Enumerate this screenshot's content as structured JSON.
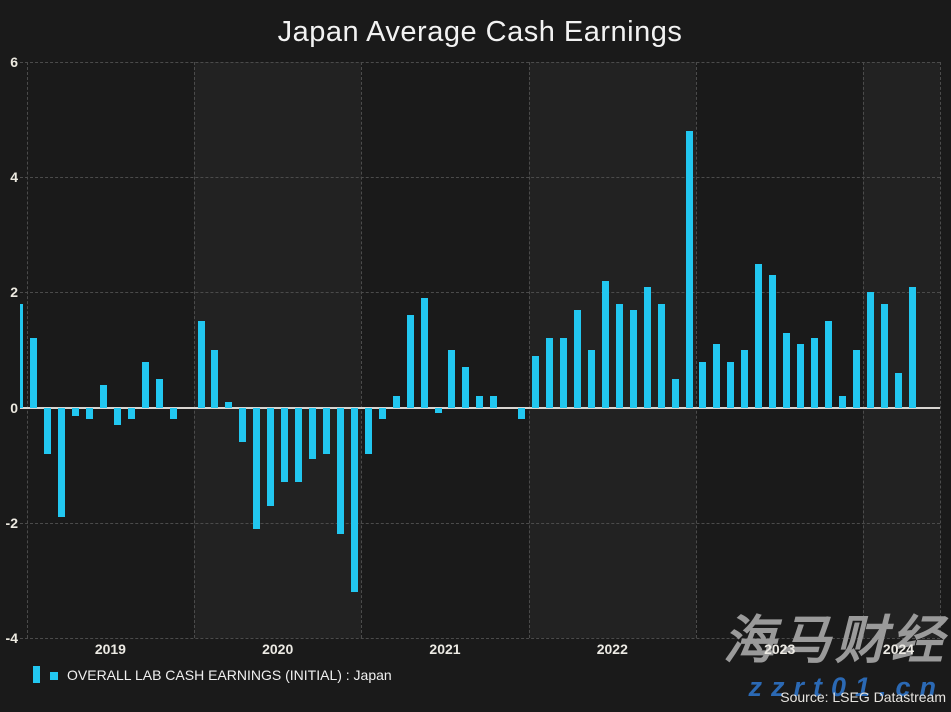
{
  "title": "Japan Average Cash Earnings",
  "legend": {
    "label": "OVERALL LAB CASH EARNINGS (INITIAL) : Japan"
  },
  "source": "Source: LSEG Datastream",
  "watermark": {
    "line1": "海马财经",
    "line2": "zzrt01.cn"
  },
  "colors": {
    "bar": "#22c7f0",
    "background": "#1a1a1a",
    "band_alt": "#222222",
    "grid": "#4b4b4b",
    "zero_line": "#d8d6d2",
    "text": "#f0f0f0",
    "watermark_gray": "#9a9a9a",
    "watermark_blue": "#2b69b4"
  },
  "chart_data": {
    "type": "bar",
    "title": "Japan Average Cash Earnings",
    "series_name": "OVERALL LAB CASH EARNINGS (INITIAL) : Japan",
    "frequency": "monthly",
    "start_month": "2018-12",
    "end_month": "2024-04",
    "ylim": [
      -4,
      6
    ],
    "grid": "dashed",
    "legend_position": "bottom-left",
    "y_ticks": [
      "6",
      "4",
      "2",
      "0",
      "-2",
      "-4"
    ],
    "y_tick_values": [
      6,
      4,
      2,
      0,
      -2,
      -4
    ],
    "x_tick_labels": [
      "2019",
      "2020",
      "2021",
      "2022",
      "2023",
      "2024"
    ],
    "values": [
      1.8,
      1.2,
      -0.8,
      -1.9,
      -0.15,
      -0.2,
      0.4,
      -0.3,
      -0.2,
      0.8,
      0.5,
      -0.2,
      0.0,
      1.5,
      1.0,
      0.1,
      -0.6,
      -2.1,
      -1.7,
      -1.3,
      -1.3,
      -0.9,
      -0.8,
      -2.2,
      -3.2,
      -0.8,
      -0.2,
      0.2,
      1.6,
      1.9,
      -0.1,
      1.0,
      0.7,
      0.2,
      0.2,
      0.0,
      -0.2,
      0.9,
      1.2,
      1.2,
      1.7,
      1.0,
      2.2,
      1.8,
      1.7,
      2.1,
      1.8,
      0.5,
      4.8,
      0.8,
      1.1,
      0.8,
      1.0,
      2.5,
      2.3,
      1.3,
      1.1,
      1.2,
      1.5,
      0.2,
      1.0,
      2.0,
      1.8,
      0.6,
      2.1
    ]
  }
}
